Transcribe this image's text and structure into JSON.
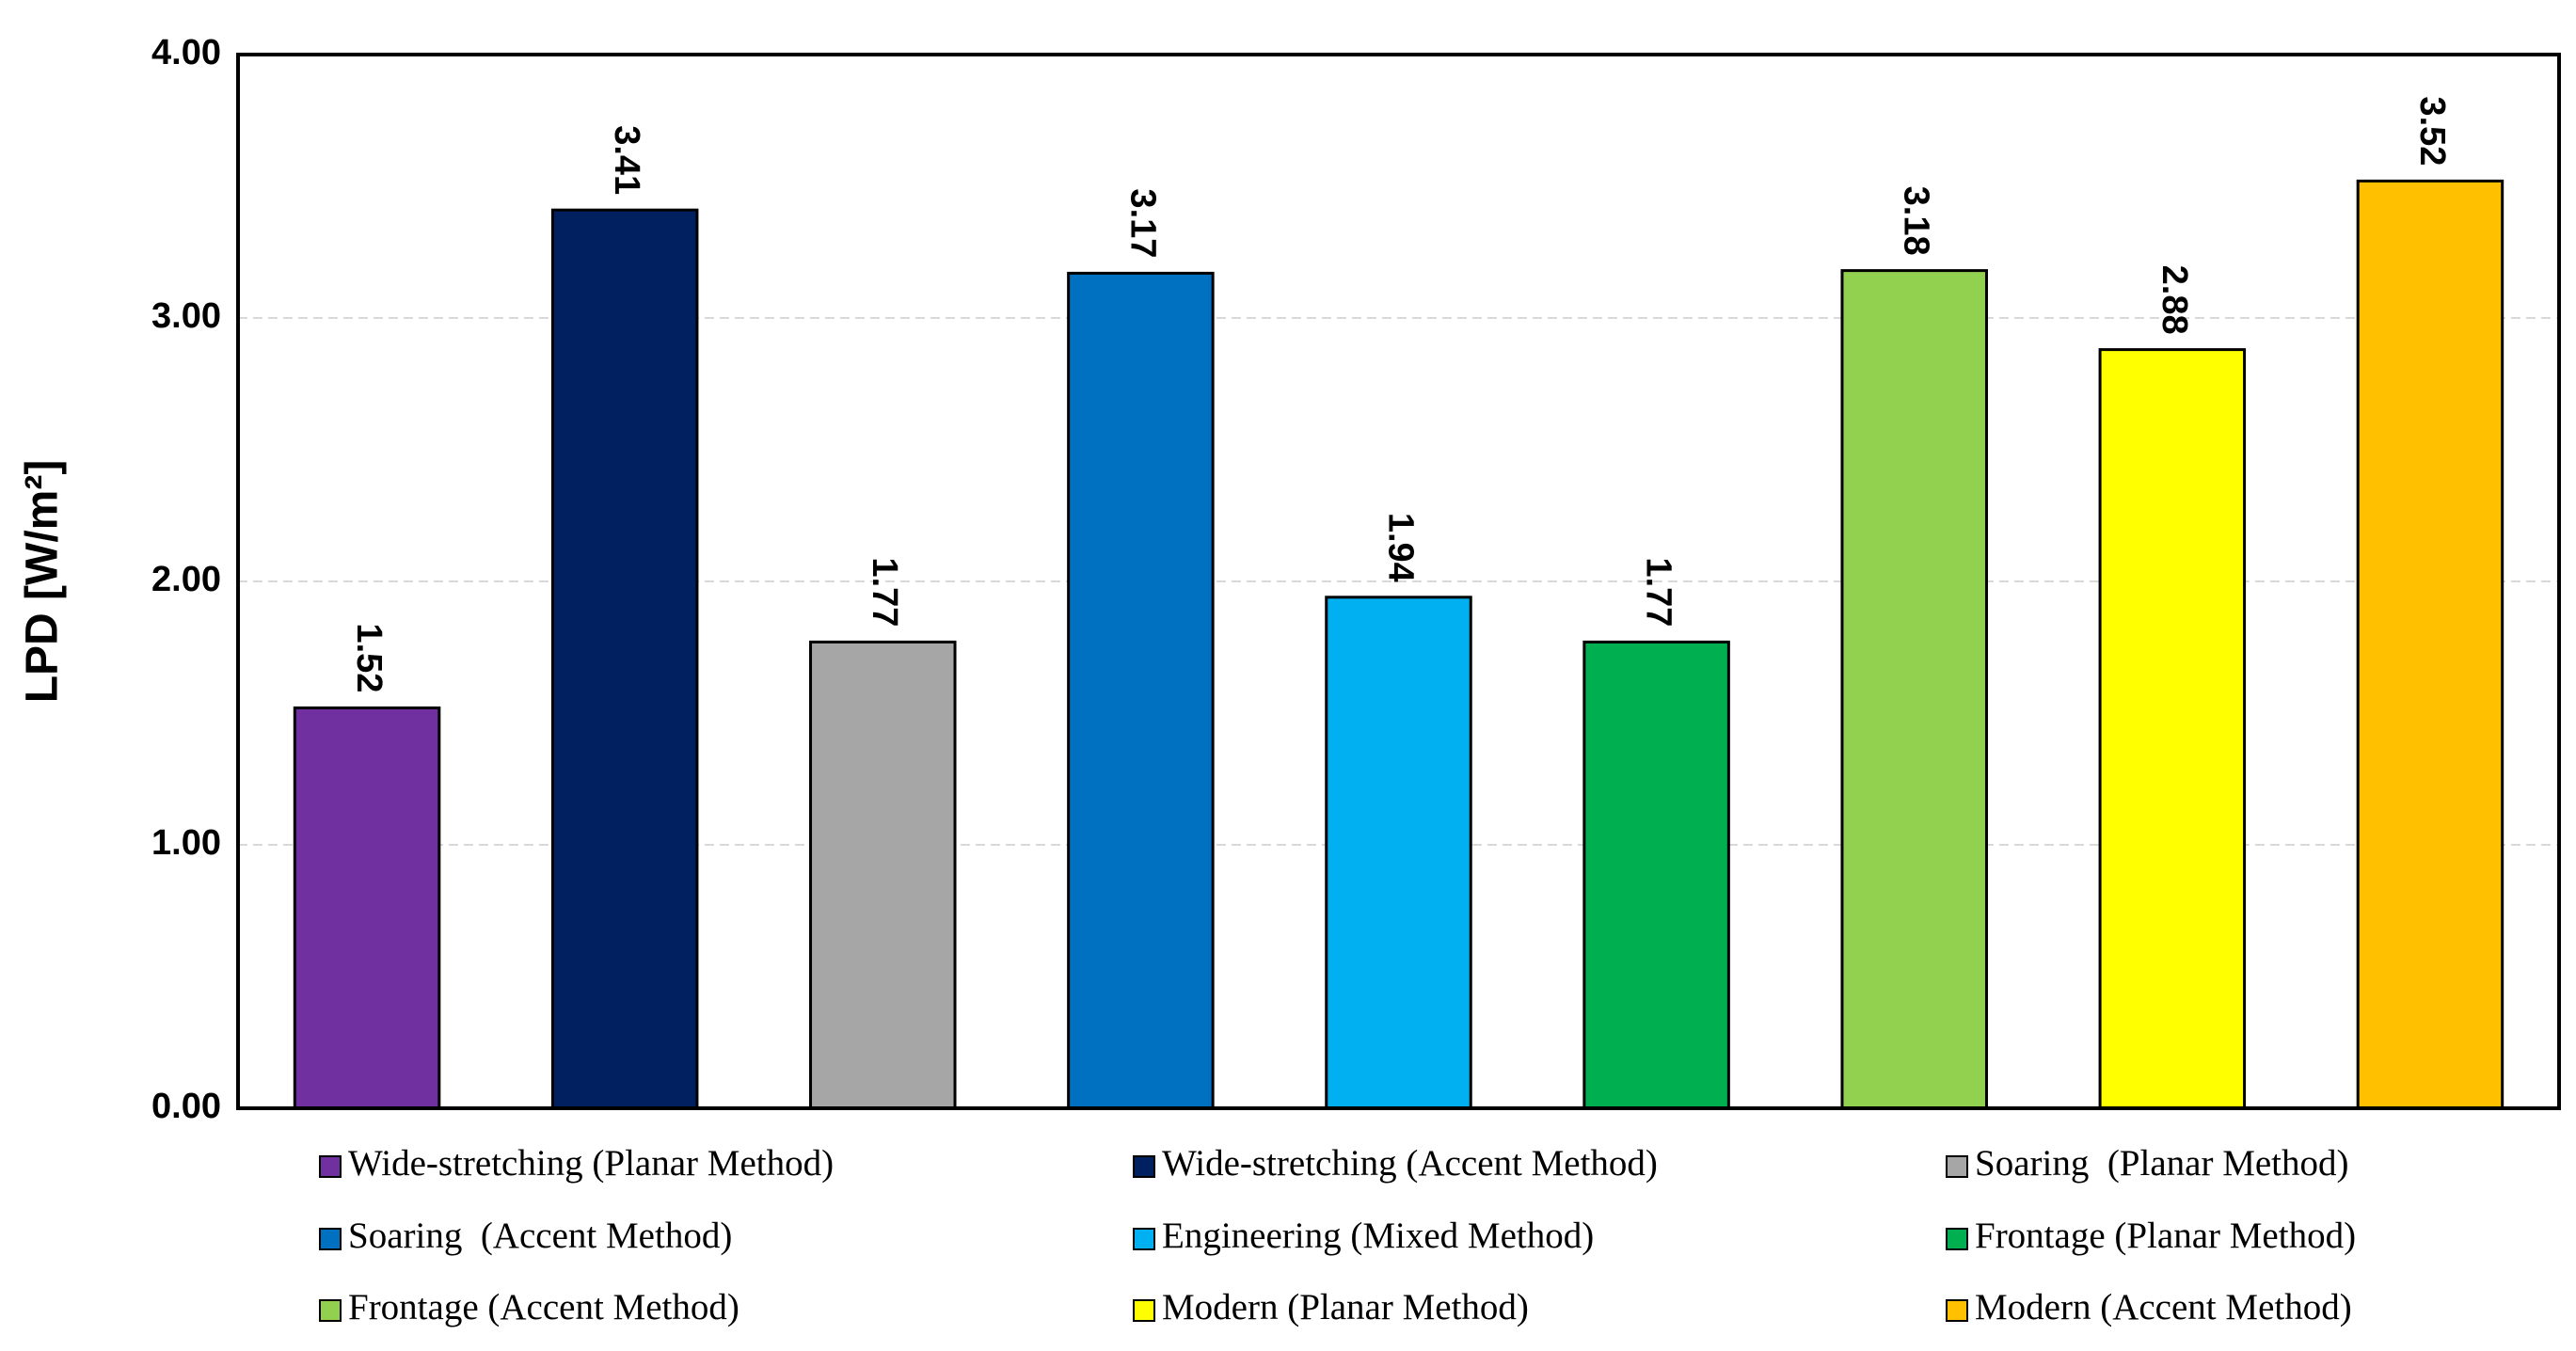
{
  "chart_data": {
    "type": "bar",
    "y_label": "LPD [W/m²]",
    "series": [
      {
        "name": "Wide-stretching (Planar Method)",
        "color": "#7030a0",
        "values": [
          1.52
        ]
      },
      {
        "name": "Wide-stretching (Accent Method)",
        "color": "#002060",
        "values": [
          3.41
        ]
      },
      {
        "name": "Soaring  (Planar Method)",
        "color": "#a6a6a6",
        "values": [
          1.77
        ]
      },
      {
        "name": "Soaring  (Accent Method)",
        "color": "#0070c0",
        "values": [
          3.17
        ]
      },
      {
        "name": "Engineering (Mixed Method)",
        "color": "#00b0f0",
        "values": [
          1.94
        ]
      },
      {
        "name": "Frontage (Planar Method)",
        "color": "#00b050",
        "values": [
          1.77
        ]
      },
      {
        "name": "Frontage (Accent Method)",
        "color": "#92d050",
        "values": [
          3.18
        ]
      },
      {
        "name": "Modern (Planar Method)",
        "color": "#ffff00",
        "values": [
          2.88
        ]
      },
      {
        "name": "Modern (Accent Method)",
        "color": "#ffc000",
        "values": [
          3.52
        ]
      }
    ],
    "ylim": [
      0,
      4
    ],
    "yticks": [
      {
        "value": 0,
        "label": "0.00"
      },
      {
        "value": 1,
        "label": "1.00"
      },
      {
        "value": 2,
        "label": "2.00"
      },
      {
        "value": 3,
        "label": "3.00"
      },
      {
        "value": 4,
        "label": "4.00"
      }
    ],
    "grid": true,
    "legend": "bottom"
  }
}
